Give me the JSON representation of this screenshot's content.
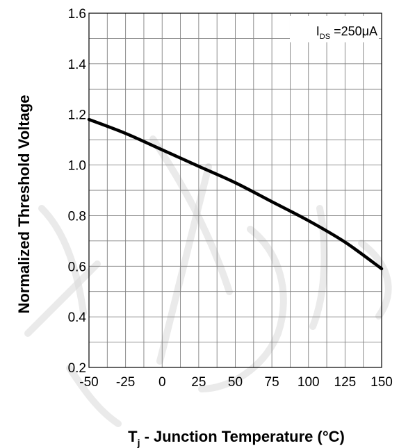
{
  "chart_data": {
    "type": "line",
    "xlabel": "T",
    "xlabel_sub": "j",
    "xlabel_rest": " - Junction Temperature (°C)",
    "ylabel": "Normalized Threshold Voltage",
    "xlim": [
      -50,
      150
    ],
    "ylim": [
      0.2,
      1.6
    ],
    "x_ticks": [
      -50,
      -25,
      0,
      25,
      50,
      75,
      100,
      125,
      150
    ],
    "x_tick_labels": [
      "-50",
      "-25",
      "0",
      "25",
      "50",
      "75",
      "100",
      "125",
      "150"
    ],
    "y_ticks": [
      0.2,
      0.4,
      0.6,
      0.8,
      1.0,
      1.2,
      1.4,
      1.6
    ],
    "y_tick_labels": [
      "0.2",
      "0.4",
      "0.6",
      "0.8",
      "1.0",
      "1.2",
      "1.4",
      "1.6"
    ],
    "x_minor_step": 12.5,
    "y_minor_step": 0.1,
    "grid": true,
    "legend": {
      "placement": "top-right",
      "prefix": "I",
      "subscript": "DS",
      "suffix": " =250μA"
    },
    "series": [
      {
        "x": [
          -50,
          -25,
          0,
          25,
          50,
          75,
          100,
          125,
          150
        ],
        "y": [
          1.18,
          1.125,
          1.06,
          0.995,
          0.93,
          0.855,
          0.78,
          0.695,
          0.59
        ]
      }
    ],
    "line_color": "#000000",
    "grid_color": "#808080"
  }
}
